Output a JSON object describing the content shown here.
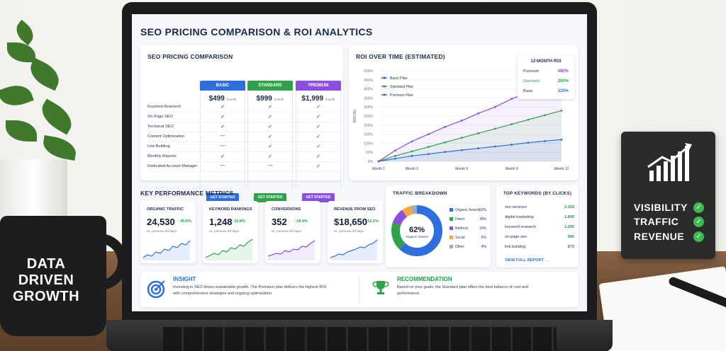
{
  "dashboard": {
    "title": "SEO PRICING COMPARISON & ROI ANALYTICS",
    "pricing": {
      "title": "SEO PRICING COMPARISON",
      "plans": [
        {
          "name": "BASIC",
          "price": "$499",
          "per": "/month",
          "cta": "GET STARTED",
          "color": "#2f6fdd"
        },
        {
          "name": "STANDARD",
          "price": "$999",
          "per": "/month",
          "cta": "GET STARTED",
          "color": "#2fa24a"
        },
        {
          "name": "PREMIUM",
          "price": "$1,999",
          "per": "/month",
          "cta": "GET STARTED",
          "color": "#8a4fe0"
        }
      ],
      "features": [
        "Keyword Research",
        "On-Page SEO",
        "Technical SEO",
        "Content Optimization",
        "Link Building",
        "Monthly Reports",
        "Dedicated Account Manager"
      ],
      "matrix": [
        [
          "✓",
          "✓",
          "✓"
        ],
        [
          "✓",
          "✓",
          "✓"
        ],
        [
          "✓",
          "✓",
          "✓"
        ],
        [
          "—",
          "✓",
          "✓"
        ],
        [
          "—",
          "✓",
          "✓"
        ],
        [
          "✓",
          "✓",
          "✓"
        ],
        [
          "—",
          "—",
          "✓"
        ]
      ]
    },
    "roi": {
      "title": "ROI OVER TIME (ESTIMATED)",
      "legend": [
        "Basic Plan",
        "Standard Plan",
        "Premium Plan"
      ],
      "box_title": "12-MONTH ROI",
      "box_rows": [
        {
          "label": "Premium",
          "value": "480%"
        },
        {
          "label": "Standard",
          "value": "280%"
        },
        {
          "label": "Basic",
          "value": "120%"
        }
      ]
    },
    "kpi": {
      "title": "KEY PERFORMANCE METRICS",
      "cards": [
        {
          "label": "ORGANIC TRAFFIC",
          "value": "24,530",
          "delta": "↑ 45.6%",
          "sub": "vs. previous 30 days",
          "color": "#2f6fdd"
        },
        {
          "label": "KEYWORD RANKINGS",
          "value": "1,248",
          "delta": "↑ 32.8%",
          "sub": "vs. previous 30 days",
          "color": "#2fa24a"
        },
        {
          "label": "CONVERSIONS",
          "value": "352",
          "delta": "↑ 28.4%",
          "sub": "vs. previous 30 days",
          "color": "#8a4fe0"
        },
        {
          "label": "REVENUE FROM SEO",
          "value": "$18,650",
          "delta": "↑ 52.1%",
          "sub": "vs. previous 30 days",
          "color": "#2f6fdd"
        }
      ]
    },
    "traffic": {
      "title": "TRAFFIC BREAKDOWN",
      "center_value": "62%",
      "center_label": "Organic Search",
      "rows": [
        {
          "label": "Organic Search",
          "value": "62%",
          "color": "#2f6fdd"
        },
        {
          "label": "Direct",
          "value": "18%",
          "color": "#2fa24a"
        },
        {
          "label": "Referral",
          "value": "10%",
          "color": "#8a4fe0"
        },
        {
          "label": "Social",
          "value": "6%",
          "color": "#f2a93b"
        },
        {
          "label": "Other",
          "value": "4%",
          "color": "#a3a9b5"
        }
      ]
    },
    "keywords": {
      "title": "TOP KEYWORDS (BY CLICKS)",
      "rows": [
        {
          "kw": "seo services",
          "clicks": "2,350"
        },
        {
          "kw": "digital marketing",
          "clicks": "1,890"
        },
        {
          "kw": "keyword research",
          "clicks": "1,250"
        },
        {
          "kw": "on-page seo",
          "clicks": "980"
        },
        {
          "kw": "link building",
          "clicks": "870"
        }
      ],
      "link": "VIEW FULL REPORT →"
    },
    "insight": {
      "title": "INSIGHT",
      "text": "Investing in SEO drives sustainable growth. The Premium plan delivers the highest ROI with comprehensive strategies and ongoing optimization."
    },
    "recommendation": {
      "title": "RECOMMENDATION",
      "text": "Based on your goals, the Standard plan offers the best balance of cost and performance."
    }
  },
  "chart_data": {
    "type": "line",
    "title": "ROI OVER TIME (ESTIMATED)",
    "xlabel": "",
    "ylabel": "ROI (%)",
    "x": [
      1,
      2,
      3,
      4,
      5,
      6,
      7,
      8,
      9,
      10,
      11,
      12
    ],
    "xtick_labels": [
      "Month 1",
      "Month 3",
      "Month 6",
      "Month 9",
      "Month 12"
    ],
    "xtick_positions": [
      1,
      3,
      6,
      9,
      12
    ],
    "yticks": [
      "0%",
      "50%",
      "100%",
      "150%",
      "200%",
      "250%",
      "300%",
      "350%",
      "400%",
      "450%",
      "500%"
    ],
    "ylim": [
      0,
      500
    ],
    "series": [
      {
        "name": "Basic Plan",
        "color": "#2f6fdd",
        "values": [
          0,
          15,
          30,
          40,
          52,
          62,
          72,
          82,
          92,
          103,
          112,
          120
        ]
      },
      {
        "name": "Standard Plan",
        "color": "#2fa24a",
        "values": [
          0,
          30,
          55,
          80,
          105,
          130,
          155,
          180,
          205,
          230,
          255,
          280
        ]
      },
      {
        "name": "Premium Plan",
        "color": "#8a4fe0",
        "values": [
          0,
          60,
          110,
          150,
          190,
          225,
          265,
          300,
          345,
          380,
          430,
          480
        ]
      }
    ],
    "grid": true,
    "legend": "top-left"
  },
  "scene": {
    "mug_lines": [
      "DATA",
      "DRIVEN",
      "GROWTH"
    ],
    "sign_lines": [
      "VISIBILITY",
      "TRAFFIC",
      "REVENUE"
    ]
  }
}
